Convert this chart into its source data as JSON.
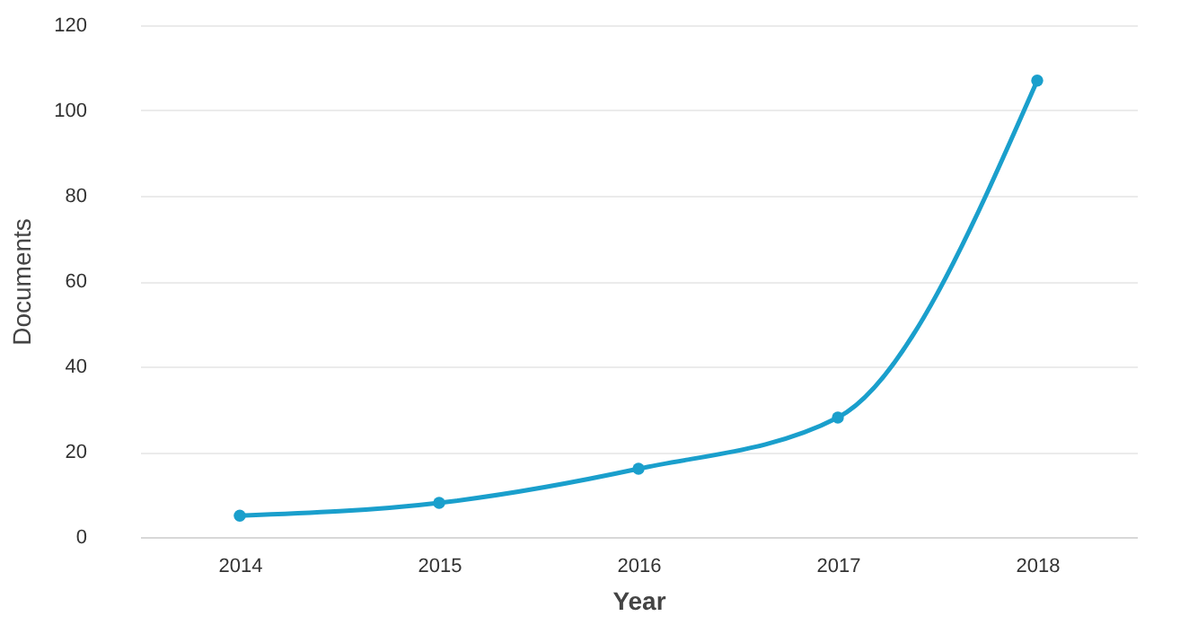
{
  "chart_data": {
    "type": "line",
    "xlabel": "Year",
    "ylabel": "Documents",
    "categories": [
      "2014",
      "2015",
      "2016",
      "2017",
      "2018"
    ],
    "series": [
      {
        "color": "#1a9fcc",
        "values": [
          5,
          8,
          16,
          28,
          107
        ]
      }
    ],
    "ylim": [
      0,
      120
    ],
    "yticks": [
      0,
      20,
      40,
      60,
      80,
      100,
      120
    ],
    "grid": "y",
    "marker": "circle",
    "line_style": "solid"
  }
}
